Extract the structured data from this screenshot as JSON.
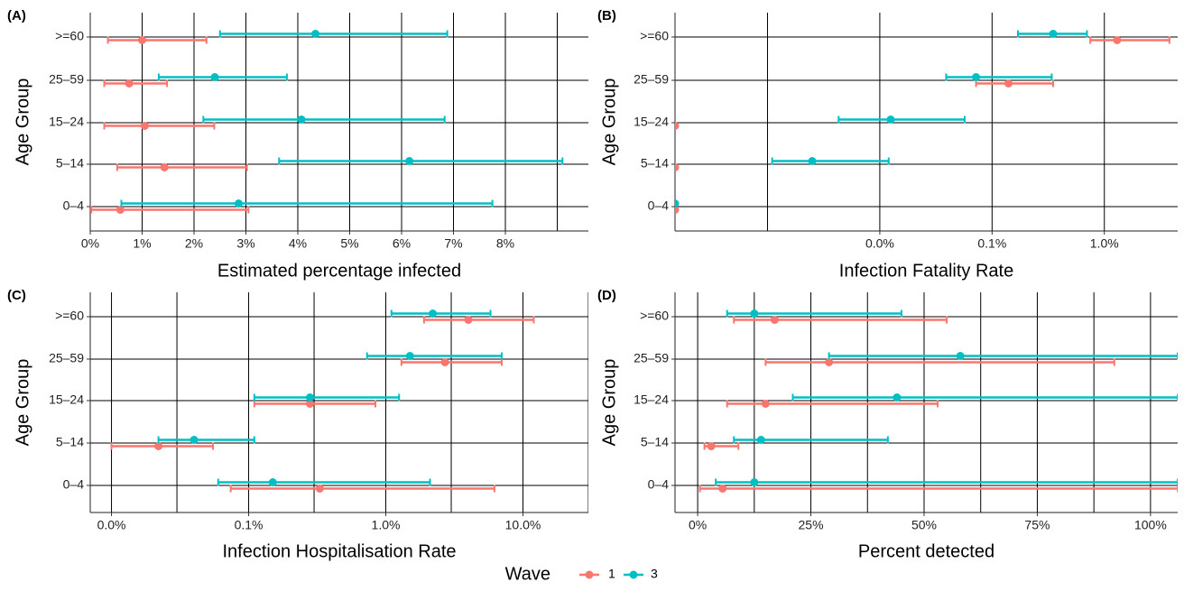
{
  "colors": {
    "wave1": "#F8766D",
    "wave3": "#00BFC4",
    "grid": "#000000"
  },
  "y_axis_label": "Age Group",
  "legend": {
    "title": "Wave",
    "items": [
      {
        "label": "1",
        "color": "#F8766D"
      },
      {
        "label": "3",
        "color": "#00BFC4"
      }
    ]
  },
  "chart_data": [
    {
      "tag": "(A)",
      "type": "interval",
      "xlabel": "Estimated percentage infected",
      "ylabel": "Age Group",
      "categories": [
        ">=60",
        "25–59",
        "15–24",
        "5–14",
        "0–4"
      ],
      "xscale": "linear",
      "xlim": [
        0,
        9.6
      ],
      "gridlines": [
        0,
        1,
        2,
        3,
        4,
        5,
        6,
        7,
        8,
        9
      ],
      "xticks": [
        {
          "v": 0,
          "label": "0%"
        },
        {
          "v": 1,
          "label": "1%"
        },
        {
          "v": 2,
          "label": "2%"
        },
        {
          "v": 3,
          "label": "3%"
        },
        {
          "v": 4,
          "label": "4%"
        },
        {
          "v": 5,
          "label": "5%"
        },
        {
          "v": 6,
          "label": "6%"
        },
        {
          "v": 7,
          "label": "7%"
        },
        {
          "v": 8,
          "label": "8%"
        }
      ],
      "series": [
        {
          "name": "1",
          "color": "#F8766D",
          "points": [
            {
              "cat": ">=60",
              "est": 1.0,
              "low": 0.34,
              "high": 2.24
            },
            {
              "cat": "25–59",
              "est": 0.75,
              "low": 0.27,
              "high": 1.48
            },
            {
              "cat": "15–24",
              "est": 1.05,
              "low": 0.27,
              "high": 2.39
            },
            {
              "cat": "5–14",
              "est": 1.43,
              "low": 0.52,
              "high": 3.02
            },
            {
              "cat": "0–4",
              "est": 0.58,
              "low": 0.02,
              "high": 3.05
            }
          ]
        },
        {
          "name": "3",
          "color": "#00BFC4",
          "points": [
            {
              "cat": ">=60",
              "est": 4.34,
              "low": 2.5,
              "high": 6.88
            },
            {
              "cat": "25–59",
              "est": 2.4,
              "low": 1.32,
              "high": 3.79
            },
            {
              "cat": "15–24",
              "est": 4.07,
              "low": 2.18,
              "high": 6.83
            },
            {
              "cat": "5–14",
              "est": 6.15,
              "low": 3.64,
              "high": 9.1
            },
            {
              "cat": "0–4",
              "est": 2.86,
              "low": 0.6,
              "high": 7.75
            }
          ]
        }
      ]
    },
    {
      "tag": "(B)",
      "type": "interval",
      "xlabel": "Infection Fatality Rate",
      "ylabel": "Age Group",
      "categories": [
        ">=60",
        "25–59",
        "15–24",
        "5–14",
        "0–4"
      ],
      "xscale": "log10",
      "xlim": [
        1.5e-06,
        0.045
      ],
      "gridlines": [
        1e-05,
        0.0001,
        0.001,
        0.01
      ],
      "xticks": [
        {
          "v": 0.0001,
          "label": "0.0%"
        },
        {
          "v": 0.001,
          "label": "0.1%"
        },
        {
          "v": 0.01,
          "label": "1.0%"
        }
      ],
      "series": [
        {
          "name": "1",
          "color": "#F8766D",
          "points": [
            {
              "cat": ">=60",
              "est": 0.013,
              "low": 0.0075,
              "high": 0.038
            },
            {
              "cat": "25–59",
              "est": 0.0014,
              "low": 0.00072,
              "high": 0.0035
            },
            {
              "cat": "15–24",
              "est": 1.5e-06
            },
            {
              "cat": "5–14",
              "est": 1.5e-06
            },
            {
              "cat": "0–4",
              "est": 1.5e-06
            }
          ]
        },
        {
          "name": "3",
          "color": "#00BFC4",
          "points": [
            {
              "cat": ">=60",
              "est": 0.0035,
              "low": 0.0017,
              "high": 0.007
            },
            {
              "cat": "25–59",
              "est": 0.00072,
              "low": 0.00039,
              "high": 0.0034
            },
            {
              "cat": "15–24",
              "est": 0.000125,
              "low": 4.3e-05,
              "high": 0.00057
            },
            {
              "cat": "5–14",
              "est": 2.5e-05,
              "low": 1.1e-05,
              "high": 0.00012
            },
            {
              "cat": "0–4",
              "est": 1.5e-06
            }
          ]
        }
      ]
    },
    {
      "tag": "(C)",
      "type": "interval",
      "xlabel": "Infection Hospitalisation Rate",
      "ylabel": "Age Group",
      "categories": [
        ">=60",
        "25–59",
        "15–24",
        "5–14",
        "0–4"
      ],
      "xscale": "log10",
      "xlim": [
        7e-05,
        0.3
      ],
      "gridlines": [
        0.0001,
        0.0003,
        0.001,
        0.003,
        0.01,
        0.03,
        0.1,
        0.3
      ],
      "xticks": [
        {
          "v": 0.0001,
          "label": "0.0%"
        },
        {
          "v": 0.001,
          "label": "0.1%"
        },
        {
          "v": 0.01,
          "label": "1.0%"
        },
        {
          "v": 0.1,
          "label": "10.0%"
        }
      ],
      "series": [
        {
          "name": "1",
          "color": "#F8766D",
          "points": [
            {
              "cat": ">=60",
              "est": 0.04,
              "low": 0.019,
              "high": 0.12
            },
            {
              "cat": "25–59",
              "est": 0.027,
              "low": 0.013,
              "high": 0.07
            },
            {
              "cat": "15–24",
              "est": 0.0028,
              "low": 0.0011,
              "high": 0.0084
            },
            {
              "cat": "5–14",
              "est": 0.00022,
              "low": 0.0001,
              "high": 0.00055
            },
            {
              "cat": "0–4",
              "est": 0.0033,
              "low": 0.00074,
              "high": 0.062
            }
          ]
        },
        {
          "name": "3",
          "color": "#00BFC4",
          "points": [
            {
              "cat": ">=60",
              "est": 0.022,
              "low": 0.011,
              "high": 0.058
            },
            {
              "cat": "25–59",
              "est": 0.015,
              "low": 0.0073,
              "high": 0.07
            },
            {
              "cat": "15–24",
              "est": 0.0028,
              "low": 0.0011,
              "high": 0.0125
            },
            {
              "cat": "5–14",
              "est": 0.0004,
              "low": 0.00022,
              "high": 0.0011
            },
            {
              "cat": "0–4",
              "est": 0.0015,
              "low": 0.0006,
              "high": 0.021
            }
          ]
        }
      ]
    },
    {
      "tag": "(D)",
      "type": "interval",
      "xlabel": "Percent detected",
      "ylabel": "Age Group",
      "categories": [
        ">=60",
        "25–59",
        "15–24",
        "5–14",
        "0–4"
      ],
      "xscale": "linear",
      "xlim": [
        -5,
        106
      ],
      "gridlines": [
        0,
        12.5,
        25,
        37.5,
        50,
        62.5,
        75,
        87.5,
        100
      ],
      "xticks": [
        {
          "v": 0,
          "label": "0%"
        },
        {
          "v": 25,
          "label": "25%"
        },
        {
          "v": 50,
          "label": "50%"
        },
        {
          "v": 75,
          "label": "75%"
        },
        {
          "v": 100,
          "label": "100%"
        }
      ],
      "series": [
        {
          "name": "1",
          "color": "#F8766D",
          "points": [
            {
              "cat": ">=60",
              "est": 17,
              "low": 8,
              "high": 55
            },
            {
              "cat": "25–59",
              "est": 29,
              "low": 15,
              "high": 92
            },
            {
              "cat": "15–24",
              "est": 15,
              "low": 6.5,
              "high": 53
            },
            {
              "cat": "5–14",
              "est": 3,
              "low": 1.5,
              "high": 9
            },
            {
              "cat": "0–4",
              "est": 5.5,
              "low": 0.5,
              "high": 106
            }
          ]
        },
        {
          "name": "3",
          "color": "#00BFC4",
          "points": [
            {
              "cat": ">=60",
              "est": 12.5,
              "low": 6.5,
              "high": 45
            },
            {
              "cat": "25–59",
              "est": 58,
              "low": 29,
              "high": 106
            },
            {
              "cat": "15–24",
              "est": 44,
              "low": 21,
              "high": 106
            },
            {
              "cat": "5–14",
              "est": 14,
              "low": 8,
              "high": 42
            },
            {
              "cat": "0–4",
              "est": 12.5,
              "low": 4,
              "high": 106
            }
          ]
        }
      ]
    }
  ]
}
